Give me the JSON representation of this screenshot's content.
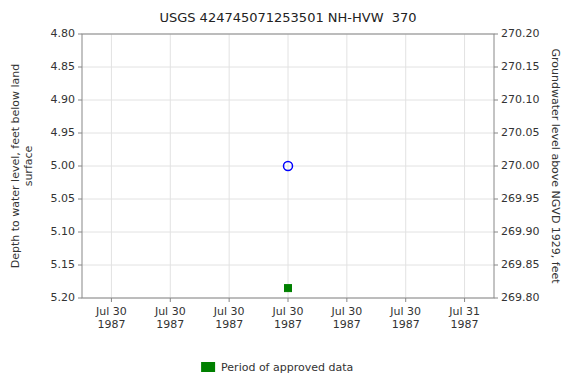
{
  "chart_data": {
    "type": "scatter",
    "title": "USGS 424745071253501 NH-HVW  370",
    "ylabel": "Depth to water level, feet below land\n surface",
    "y2label": "Groundwater level above NGVD 1929, feet",
    "categories": [
      "Jul 30\n1987",
      "Jul 30\n1987",
      "Jul 30\n1987",
      "Jul 30\n1987",
      "Jul 30\n1987",
      "Jul 30\n1987",
      "Jul 31\n1987"
    ],
    "series": [
      {
        "color": "blue",
        "marker": "circle",
        "values": [
          null,
          null,
          null,
          5.0,
          null,
          null,
          null
        ]
      },
      {
        "name": "Period of approved data",
        "color": "green",
        "marker": "square",
        "values": [
          null,
          null,
          null,
          5.185,
          null,
          null,
          null
        ]
      }
    ],
    "ylim": [
      5.2,
      4.8
    ],
    "yticks": [
      {
        "value": 4.8,
        "label": "4.80"
      },
      {
        "value": 4.85,
        "label": "4.85"
      },
      {
        "value": 4.9,
        "label": "4.90"
      },
      {
        "value": 4.95,
        "label": "4.95"
      },
      {
        "value": 5.0,
        "label": "5.00"
      },
      {
        "value": 5.05,
        "label": "5.05"
      },
      {
        "value": 5.1,
        "label": "5.10"
      },
      {
        "value": 5.15,
        "label": "5.15"
      },
      {
        "value": 5.2,
        "label": "5.20"
      }
    ],
    "y2lim": [
      269.8,
      270.2
    ],
    "y2ticks": [
      {
        "value": 269.8,
        "label": "269.80"
      },
      {
        "value": 269.85,
        "label": "269.85"
      },
      {
        "value": 269.9,
        "label": "269.90"
      },
      {
        "value": 269.95,
        "label": "269.95"
      },
      {
        "value": 270.0,
        "label": "270.00"
      },
      {
        "value": 270.05,
        "label": "270.05"
      },
      {
        "value": 270.1,
        "label": "270.10"
      },
      {
        "value": 270.15,
        "label": "270.15"
      },
      {
        "value": 270.2,
        "label": "270.20"
      }
    ],
    "grid": true,
    "legend": "bottom"
  }
}
